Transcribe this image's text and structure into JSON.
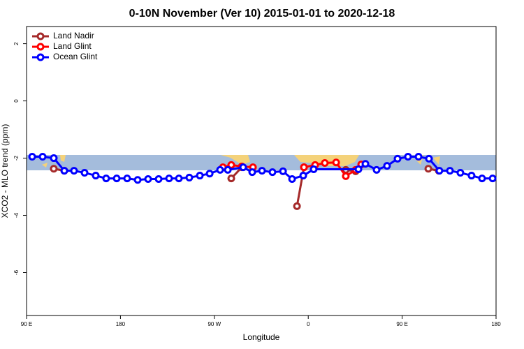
{
  "chart_data": {
    "type": "line",
    "title": "0-10N November (Ver 10)   2015-01-01 to 2020-12-18",
    "x_label": "Longitude",
    "y_label": "XCO2 - MLO trend (ppm)",
    "xlim": [
      90,
      540
    ],
    "ylim": [
      -7.5,
      2.6
    ],
    "xticks": [
      {
        "value": 90,
        "label": "90 E"
      },
      180,
      {
        "value": 270,
        "label": "90 W"
      },
      {
        "value": 360,
        "label": "0"
      },
      {
        "value": 450,
        "label": "90 E"
      },
      {
        "value": 540,
        "label": "180"
      }
    ],
    "yticks": [
      2,
      0,
      -2,
      -4,
      -6
    ],
    "legend": "top-left",
    "series": [
      {
        "name": "Land Nadir",
        "color": "#a52a2a",
        "x": [
          116.1,
          126.2,
          null,
          286.2,
          296.3,
          null,
          349.2,
          355.9,
          null,
          396.0,
          405.4,
          null,
          475.1,
          485.1
        ],
        "values": [
          -2.37,
          -2.44,
          null,
          -2.71,
          -2.32,
          null,
          -3.68,
          -2.32,
          null,
          -2.41,
          -2.46,
          null,
          -2.37,
          -2.44
        ]
      },
      {
        "name": "Land Glint",
        "color": "#ff0000",
        "x": [
          278.2,
          286.2,
          296.3,
          307.0,
          null,
          355.9,
          366.6,
          375.9,
          386.7,
          396.0,
          405.4,
          410.8
        ],
        "values": [
          -2.32,
          -2.24,
          -2.29,
          -2.32,
          null,
          -2.32,
          -2.24,
          -2.17,
          -2.15,
          -2.63,
          -2.41,
          -2.22
        ]
      },
      {
        "name": "Ocean Glint",
        "color": "#0000ff",
        "x": [
          95.4,
          105.4,
          116.1,
          126.2,
          135.5,
          145.6,
          156.3,
          166.3,
          176.4,
          186.4,
          196.5,
          206.5,
          216.6,
          226.6,
          236.0,
          246.0,
          256.1,
          265.5,
          275.5,
          282.9,
          297.6,
          306.3,
          315.7,
          325.7,
          335.8,
          344.5,
          355.2,
          365.2,
          408.1,
          414.8,
          425.5,
          435.5,
          445.6,
          455.6,
          465.7,
          475.7,
          485.7,
          495.8,
          505.8,
          516.5,
          526.6,
          536.7
        ],
        "values": [
          -1.95,
          -1.95,
          -2.0,
          -2.44,
          -2.44,
          -2.51,
          -2.61,
          -2.71,
          -2.71,
          -2.71,
          -2.76,
          -2.73,
          -2.73,
          -2.71,
          -2.71,
          -2.68,
          -2.61,
          -2.54,
          -2.41,
          -2.41,
          -2.32,
          -2.49,
          -2.44,
          -2.49,
          -2.46,
          -2.73,
          -2.61,
          -2.39,
          -2.39,
          -2.2,
          -2.41,
          -2.27,
          -2.02,
          -1.95,
          -1.95,
          -2.02,
          -2.44,
          -2.44,
          -2.51,
          -2.61,
          -2.71,
          -2.71
        ]
      }
    ]
  }
}
